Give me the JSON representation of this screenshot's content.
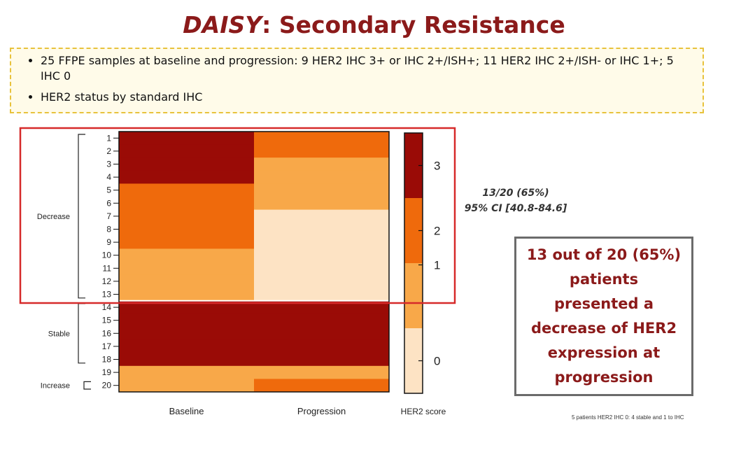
{
  "slide": {
    "title_italic": "DAISY",
    "title_rest": ": Secondary Resistance",
    "bullets": [
      "25 FFPE samples at baseline and progression: 9 HER2 IHC 3+ or IHC 2+/ISH+;  11 HER2 IHC 2+/ISH- or IHC 1+; 5 IHC 0",
      "HER2 status by standard IHC"
    ],
    "stat_line1": "13/20 (65%)",
    "stat_line2": "95% CI [40.8-84.6]",
    "callout": "13 out of 20 (65%) patients presented a decrease of HER2 expression at progression",
    "footnote": "5 patients HER2 IHC 0: 4 stable and 1 to IHC"
  },
  "colors": {
    "score3": "#9a0b06",
    "score2": "#ef6a0c",
    "score1": "#f8a849",
    "score0": "#fde3c4",
    "highlight_box": "#d62a2a"
  },
  "chart_data": {
    "type": "heatmap",
    "xlabel": "",
    "ylabel": "",
    "x_categories": [
      "Baseline",
      "Progression"
    ],
    "patients": [
      "1",
      "2",
      "3",
      "4",
      "5",
      "6",
      "7",
      "8",
      "9",
      "10",
      "11",
      "12",
      "13",
      "14",
      "15",
      "16",
      "17",
      "18",
      "19",
      "20"
    ],
    "baseline": [
      3,
      3,
      3,
      3,
      2,
      2,
      2,
      2,
      2,
      1,
      1,
      1,
      1,
      3,
      3,
      3,
      3,
      3,
      1,
      1
    ],
    "progression": [
      2,
      2,
      1,
      1,
      1,
      1,
      0,
      0,
      0,
      0,
      0,
      0,
      0,
      3,
      3,
      3,
      3,
      3,
      1,
      2
    ],
    "groups": [
      {
        "label": "Decrease",
        "from": 1,
        "to": 13
      },
      {
        "label": "Stable",
        "from": 14,
        "to": 18
      },
      {
        "label": "Increase",
        "from": 20,
        "to": 20
      }
    ],
    "colorbar": {
      "label": "HER2 score",
      "ticks": [
        "3",
        "2",
        "1",
        "0"
      ],
      "range": [
        0,
        3
      ]
    }
  }
}
